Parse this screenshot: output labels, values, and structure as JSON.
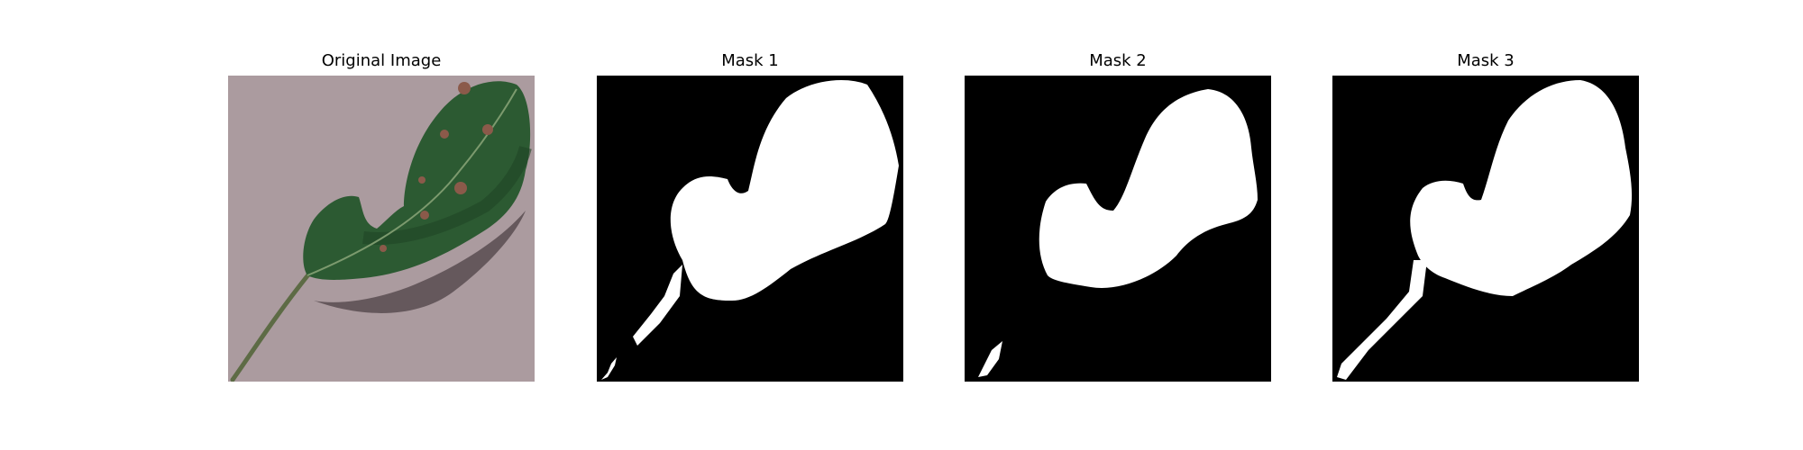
{
  "figure": {
    "panels": [
      {
        "title": "Original Image",
        "kind": "photo"
      },
      {
        "title": "Mask 1",
        "kind": "mask"
      },
      {
        "title": "Mask 2",
        "kind": "mask"
      },
      {
        "title": "Mask 3",
        "kind": "mask"
      }
    ]
  },
  "colors": {
    "background": "#ffffff",
    "mask_background": "#000000",
    "mask_foreground": "#ffffff",
    "surface": "#a9999c",
    "leaf": "#2c5a32",
    "leaf_dark": "#1f4425",
    "spot": "#8b5a4a",
    "shadow": "#4e4246"
  }
}
